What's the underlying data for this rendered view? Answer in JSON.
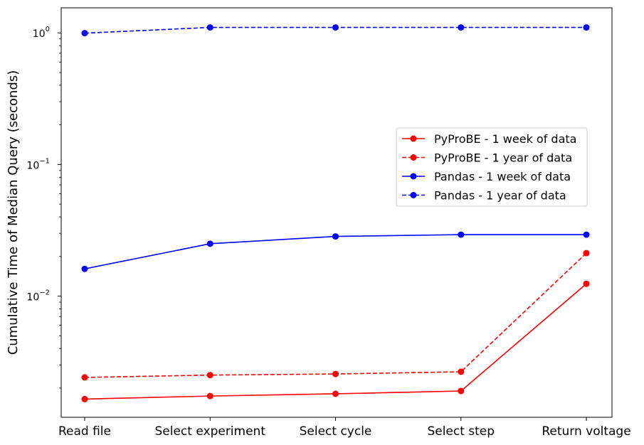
{
  "chart_data": {
    "type": "line",
    "title": "",
    "xlabel": "",
    "ylabel": "Cumulative Time of Median Query (seconds)",
    "yscale": "log",
    "ylim": [
      0.0012,
      1.55
    ],
    "yticks": [
      {
        "value": 1,
        "base": "10",
        "exp": "0"
      },
      {
        "value": 0.1,
        "base": "10",
        "exp": "−1"
      },
      {
        "value": 0.01,
        "base": "10",
        "exp": "−2"
      }
    ],
    "categories": [
      "Read file",
      "Select experiment",
      "Select cycle",
      "Select step",
      "Return voltage"
    ],
    "legend_position": "center-right",
    "grid": false,
    "series": [
      {
        "name": "PyProBE - 1 week of data",
        "color": "#ff0000",
        "dash": "solid",
        "values": [
          0.00165,
          0.00174,
          0.00181,
          0.0019,
          0.0124
        ]
      },
      {
        "name": "PyProBE - 1 year of data",
        "color": "#ff0000",
        "dash": "dashed",
        "values": [
          0.00241,
          0.00251,
          0.00256,
          0.00266,
          0.0212
        ]
      },
      {
        "name": "Pandas - 1 week of data",
        "color": "#0000ff",
        "dash": "solid",
        "values": [
          0.0161,
          0.025,
          0.0284,
          0.0293,
          0.0293
        ]
      },
      {
        "name": "Pandas - 1 year of data",
        "color": "#0000ff",
        "dash": "dashed",
        "values": [
          0.995,
          1.1,
          1.1,
          1.1,
          1.1
        ]
      }
    ]
  }
}
